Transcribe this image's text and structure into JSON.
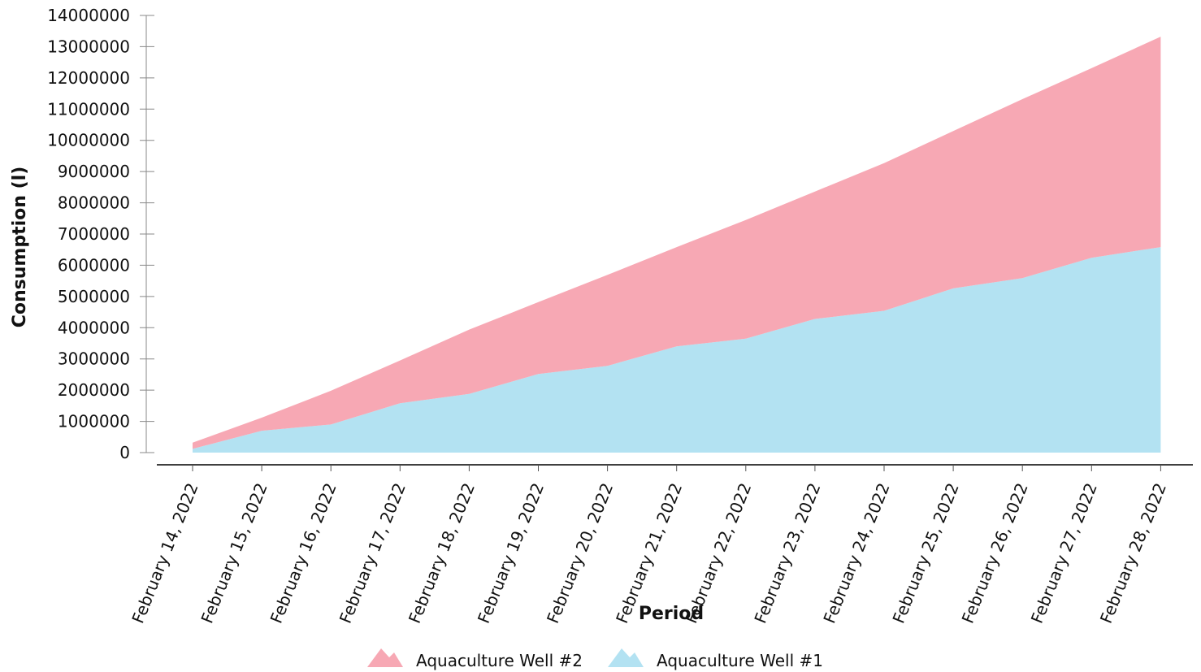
{
  "chart_data": {
    "type": "area",
    "stacked": true,
    "title": "",
    "xlabel": "Period",
    "ylabel": "Consumption (l)",
    "ylim": [
      0,
      14000000
    ],
    "y_ticks": [
      0,
      1000000,
      2000000,
      3000000,
      4000000,
      5000000,
      6000000,
      7000000,
      8000000,
      9000000,
      10000000,
      11000000,
      12000000,
      13000000,
      14000000
    ],
    "categories": [
      "February 14, 2022",
      "February 15, 2022",
      "February 16, 2022",
      "February 17, 2022",
      "February 18, 2022",
      "February 19, 2022",
      "February 20, 2022",
      "February 21, 2022",
      "February 22, 2022",
      "February 23, 2022",
      "February 24, 2022",
      "February 25, 2022",
      "February 26, 2022",
      "February 27, 2022",
      "February 28, 2022"
    ],
    "series": [
      {
        "name": "Aquaculture Well #1",
        "color": "#b3e2f2",
        "values": [
          120000,
          700000,
          900000,
          1580000,
          1880000,
          2520000,
          2780000,
          3400000,
          3650000,
          4280000,
          4540000,
          5260000,
          5590000,
          6240000,
          6580000
        ]
      },
      {
        "name": "Aquaculture Well #2",
        "color": "#f7a8b4",
        "values": [
          200000,
          420000,
          1080000,
          1370000,
          2060000,
          2300000,
          2910000,
          3180000,
          3800000,
          4080000,
          4730000,
          5040000,
          5730000,
          6070000,
          6740000
        ]
      }
    ],
    "legend": {
      "position": "bottom",
      "order": [
        "Aquaculture Well #2",
        "Aquaculture Well #1"
      ]
    },
    "grid": false
  }
}
